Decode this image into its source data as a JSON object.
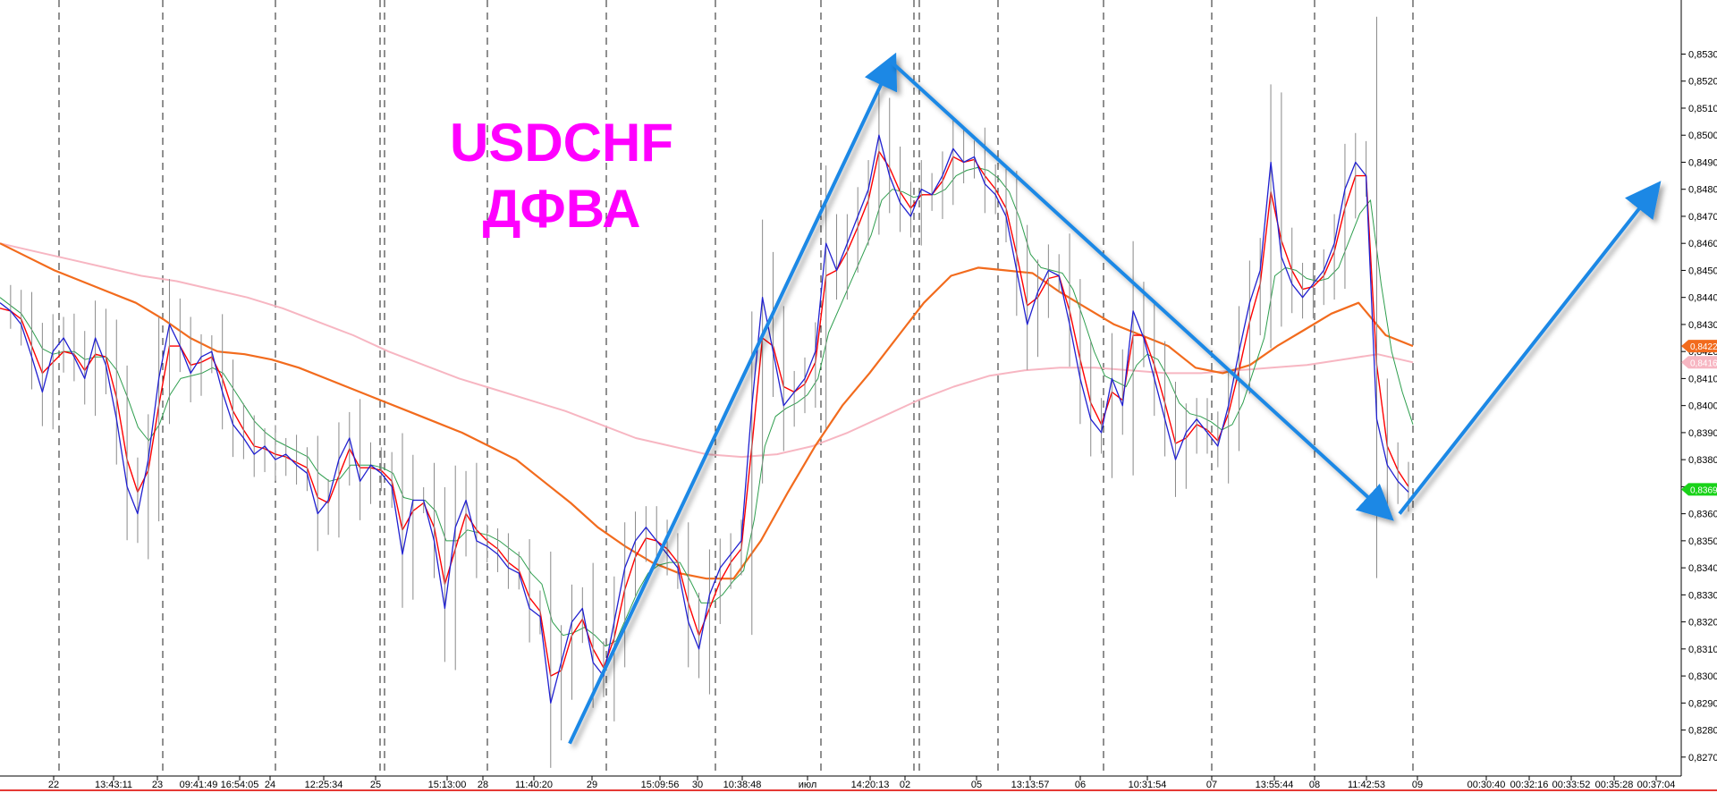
{
  "chart_data": {
    "type": "line",
    "title": "USDCHF",
    "subtitle": "ДФВА",
    "ylim": [
      0.8263,
      0.855
    ],
    "y_ticks": [
      "0,8530",
      "0,8520",
      "0,8510",
      "0,8500",
      "0,8490",
      "0,8480",
      "0,8470",
      "0,8460",
      "0,8450",
      "0,8440",
      "0,8430",
      "0,8420",
      "0,8410",
      "0,8400",
      "0,8390",
      "0,8380",
      "0,8370",
      "0,8360",
      "0,8350",
      "0,8340",
      "0,8330",
      "0,8320",
      "0,8310",
      "0,8300",
      "0,8290",
      "0,8280",
      "0,8270"
    ],
    "x_ticks": [
      "22",
      "13:43:11",
      "23",
      "09:41:49",
      "16:54:05",
      "24",
      "12:25:34",
      "25",
      "15:13:00",
      "28",
      "11:40:20",
      "29",
      "15:09:56",
      "30",
      "10:38:48",
      "июл",
      "14:20:13",
      "02",
      "05",
      "13:13:57",
      "06",
      "10:31:54",
      "07",
      "13:55:44",
      "08",
      "11:42:53",
      "09",
      "00:30:40",
      "00:32:16",
      "00:33:52",
      "00:35:28",
      "00:37:04"
    ],
    "price_labels": [
      {
        "text": "0,8422",
        "value": 0.8422,
        "color": "#f26b1d"
      },
      {
        "text": "0,8416",
        "value": 0.8416,
        "color": "#f7b6c2"
      },
      {
        "text": "0,8369",
        "value": 0.8369,
        "color": "#19d219"
      }
    ],
    "grid": false,
    "series": [
      {
        "color": "#2020d0",
        "values": [
          0.8438,
          0.8435,
          0.843,
          0.8418,
          0.8405,
          0.842,
          0.8425,
          0.8418,
          0.841,
          0.8425,
          0.8415,
          0.8395,
          0.837,
          0.836,
          0.838,
          0.841,
          0.843,
          0.8422,
          0.8412,
          0.8418,
          0.842,
          0.8405,
          0.8393,
          0.8388,
          0.8382,
          0.8385,
          0.838,
          0.8382,
          0.8378,
          0.8375,
          0.836,
          0.8365,
          0.838,
          0.8388,
          0.8372,
          0.8378,
          0.8375,
          0.837,
          0.8345,
          0.8365,
          0.8365,
          0.835,
          0.8325,
          0.8355,
          0.8365,
          0.835,
          0.8348,
          0.8345,
          0.834,
          0.8338,
          0.8325,
          0.8322,
          0.829,
          0.8305,
          0.832,
          0.8325,
          0.8305,
          0.83,
          0.832,
          0.834,
          0.835,
          0.8355,
          0.835,
          0.8345,
          0.834,
          0.832,
          0.831,
          0.833,
          0.834,
          0.8345,
          0.835,
          0.84,
          0.844,
          0.842,
          0.84,
          0.8405,
          0.841,
          0.842,
          0.846,
          0.845,
          0.846,
          0.847,
          0.848,
          0.85,
          0.8485,
          0.8475,
          0.847,
          0.848,
          0.8478,
          0.8485,
          0.8495,
          0.849,
          0.8492,
          0.8482,
          0.8478,
          0.847,
          0.845,
          0.843,
          0.8442,
          0.845,
          0.8448,
          0.843,
          0.841,
          0.8395,
          0.839,
          0.841,
          0.84,
          0.8435,
          0.8425,
          0.841,
          0.8395,
          0.838,
          0.839,
          0.8395,
          0.839,
          0.8385,
          0.84,
          0.842,
          0.8438,
          0.845,
          0.849,
          0.8455,
          0.8445,
          0.844,
          0.8445,
          0.845,
          0.846,
          0.848,
          0.849,
          0.8485,
          0.8395,
          0.8378,
          0.8372,
          0.8368
        ]
      },
      {
        "color": "#ff0000",
        "values": [
          0.8436,
          0.8435,
          0.8432,
          0.8422,
          0.8412,
          0.8416,
          0.842,
          0.8419,
          0.8413,
          0.8419,
          0.8418,
          0.8403,
          0.838,
          0.8368,
          0.8376,
          0.84,
          0.8422,
          0.8422,
          0.8415,
          0.8416,
          0.8418,
          0.841,
          0.8398,
          0.8391,
          0.8385,
          0.8384,
          0.8382,
          0.8381,
          0.8379,
          0.8377,
          0.8366,
          0.8364,
          0.8374,
          0.8384,
          0.8377,
          0.8377,
          0.8376,
          0.8372,
          0.8354,
          0.8361,
          0.8364,
          0.8355,
          0.8334,
          0.8347,
          0.836,
          0.8354,
          0.835,
          0.8347,
          0.8342,
          0.8339,
          0.8329,
          0.8324,
          0.83,
          0.8302,
          0.8315,
          0.8321,
          0.831,
          0.8303,
          0.8314,
          0.8332,
          0.8344,
          0.8351,
          0.835,
          0.8347,
          0.8342,
          0.8327,
          0.8315,
          0.8325,
          0.8335,
          0.8342,
          0.8347,
          0.8385,
          0.8425,
          0.8422,
          0.8407,
          0.8405,
          0.8408,
          0.8416,
          0.8448,
          0.845,
          0.8457,
          0.8466,
          0.8476,
          0.8494,
          0.8488,
          0.8479,
          0.8473,
          0.8478,
          0.8478,
          0.8483,
          0.8492,
          0.849,
          0.8491,
          0.8485,
          0.848,
          0.8473,
          0.8456,
          0.8437,
          0.844,
          0.8447,
          0.8448,
          0.8435,
          0.8417,
          0.8401,
          0.8393,
          0.8405,
          0.8402,
          0.8426,
          0.8426,
          0.8415,
          0.8401,
          0.8386,
          0.8388,
          0.8393,
          0.8391,
          0.8387,
          0.8397,
          0.8413,
          0.8431,
          0.8445,
          0.8479,
          0.8461,
          0.845,
          0.8443,
          0.8444,
          0.8448,
          0.8457,
          0.8473,
          0.8485,
          0.8485,
          0.8415,
          0.8385,
          0.8376,
          0.837
        ]
      },
      {
        "color": "#2e9e4e",
        "values": [
          0.844,
          0.8437,
          0.8434,
          0.8428,
          0.8421,
          0.8419,
          0.842,
          0.842,
          0.8417,
          0.8418,
          0.8418,
          0.8413,
          0.8403,
          0.8392,
          0.8387,
          0.8393,
          0.8404,
          0.841,
          0.8411,
          0.8412,
          0.8414,
          0.8412,
          0.8406,
          0.84,
          0.8394,
          0.839,
          0.8387,
          0.8385,
          0.8383,
          0.8381,
          0.8375,
          0.8372,
          0.8373,
          0.8378,
          0.8378,
          0.8378,
          0.8377,
          0.8375,
          0.8366,
          0.8365,
          0.8365,
          0.8361,
          0.835,
          0.835,
          0.8354,
          0.8353,
          0.8352,
          0.835,
          0.8347,
          0.8344,
          0.8338,
          0.8334,
          0.832,
          0.8315,
          0.8316,
          0.8318,
          0.8315,
          0.8311,
          0.8313,
          0.8322,
          0.8331,
          0.8338,
          0.8341,
          0.8342,
          0.8342,
          0.8335,
          0.8327,
          0.8327,
          0.833,
          0.8335,
          0.8339,
          0.8358,
          0.8385,
          0.8396,
          0.8399,
          0.8401,
          0.8404,
          0.841,
          0.8427,
          0.8436,
          0.8445,
          0.8454,
          0.8463,
          0.8476,
          0.848,
          0.8479,
          0.8477,
          0.8478,
          0.8478,
          0.848,
          0.8485,
          0.8487,
          0.8488,
          0.8487,
          0.8484,
          0.8479,
          0.8469,
          0.8456,
          0.8451,
          0.845,
          0.8449,
          0.8443,
          0.8432,
          0.842,
          0.8411,
          0.8409,
          0.8407,
          0.8415,
          0.8419,
          0.8417,
          0.841,
          0.8401,
          0.8397,
          0.8396,
          0.8394,
          0.8391,
          0.8393,
          0.8401,
          0.8413,
          0.8425,
          0.8448,
          0.8451,
          0.845,
          0.8447,
          0.8446,
          0.8447,
          0.8451,
          0.8461,
          0.8471,
          0.8476,
          0.8445,
          0.842,
          0.8405,
          0.8393
        ]
      },
      {
        "color": "#f26b1d",
        "values": [
          0.846,
          0.8455,
          0.845,
          0.8446,
          0.8442,
          0.8438,
          0.8432,
          0.8425,
          0.842,
          0.8419,
          0.8417,
          0.8414,
          0.841,
          0.8406,
          0.8402,
          0.8398,
          0.8394,
          0.839,
          0.8385,
          0.838,
          0.8372,
          0.8364,
          0.8355,
          0.8348,
          0.8342,
          0.8338,
          0.8336,
          0.8336,
          0.835,
          0.8368,
          0.8385,
          0.84,
          0.8412,
          0.8425,
          0.8438,
          0.8448,
          0.8451,
          0.845,
          0.8449,
          0.8442,
          0.8436,
          0.843,
          0.8426,
          0.8422,
          0.8414,
          0.8412,
          0.8415,
          0.8422,
          0.8428,
          0.8434,
          0.8438,
          0.8426,
          0.8422
        ]
      },
      {
        "color": "#f7b6c2",
        "values": [
          0.846,
          0.8457,
          0.8454,
          0.8451,
          0.8448,
          0.8446,
          0.8443,
          0.844,
          0.8436,
          0.8431,
          0.8426,
          0.842,
          0.8415,
          0.841,
          0.8406,
          0.8402,
          0.8398,
          0.8393,
          0.8388,
          0.8385,
          0.8382,
          0.8381,
          0.8382,
          0.8385,
          0.839,
          0.8396,
          0.8402,
          0.8407,
          0.8411,
          0.8413,
          0.8414,
          0.8414,
          0.8413,
          0.8412,
          0.8412,
          0.8413,
          0.8414,
          0.8415,
          0.8417,
          0.8419,
          0.8416
        ]
      }
    ],
    "annotations": [
      {
        "type": "arrow",
        "color": "#1e88e5",
        "from": {
          "x": "11:40:20",
          "y": 0.8275
        },
        "to": {
          "x": "14:20:13",
          "y": 0.8527
        }
      },
      {
        "type": "arrow",
        "color": "#1e88e5",
        "from": {
          "x": "14:20:13",
          "y": 0.8527
        },
        "to": {
          "x": "11:42:53",
          "y": 0.836
        }
      },
      {
        "type": "arrow",
        "color": "#1e88e5",
        "from": {
          "x": "09",
          "y": 0.836
        },
        "to": {
          "x": "00:37:04",
          "y": 0.848
        }
      }
    ]
  }
}
